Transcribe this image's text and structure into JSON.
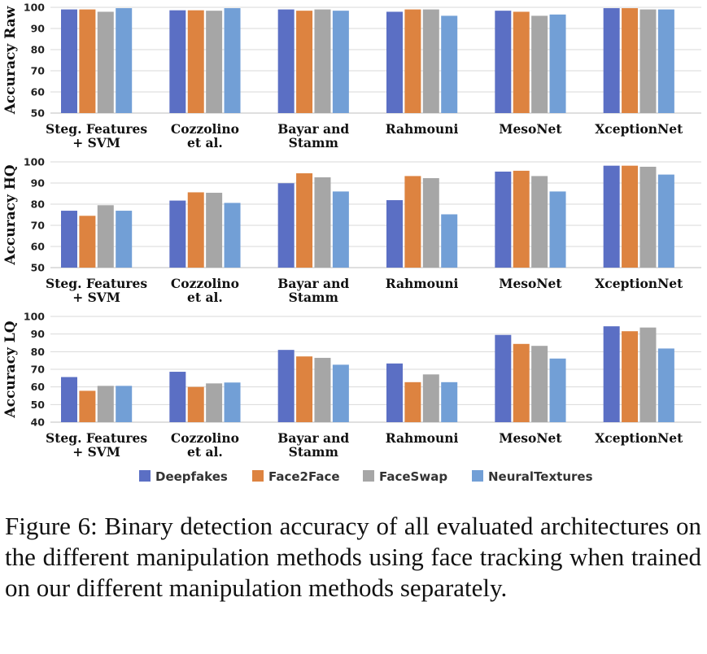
{
  "colors": {
    "Deepfakes": "#5b6fc4",
    "Face2Face": "#dd8340",
    "FaceSwap": "#a6a6a6",
    "NeuralTextures": "#729fd6",
    "grid": "#d9d9d9",
    "axis": "#bfbfbf"
  },
  "legend": [
    "Deepfakes",
    "Face2Face",
    "FaceSwap",
    "NeuralTextures"
  ],
  "chart_data": [
    {
      "type": "bar",
      "ylabel": "Accuracy Raw",
      "ylim": [
        50,
        100
      ],
      "yticks": [
        50,
        60,
        70,
        80,
        90,
        100
      ],
      "categories": [
        [
          "Steg. Features",
          "+ SVM"
        ],
        [
          "Cozzolino",
          "et al."
        ],
        [
          "Bayar and",
          "Stamm"
        ],
        [
          "Rahmouni"
        ],
        [
          "MesoNet"
        ],
        [
          "XceptionNet"
        ]
      ],
      "series": [
        {
          "name": "Deepfakes",
          "values": [
            99.0,
            98.6,
            99.0,
            97.9,
            98.4,
            99.6
          ]
        },
        {
          "name": "Face2Face",
          "values": [
            99.0,
            98.6,
            98.4,
            99.0,
            97.9,
            99.6
          ]
        },
        {
          "name": "FaceSwap",
          "values": [
            97.9,
            98.4,
            99.0,
            99.0,
            96.0,
            99.0
          ]
        },
        {
          "name": "NeuralTextures",
          "values": [
            99.6,
            99.6,
            98.4,
            96.0,
            96.6,
            99.0
          ]
        }
      ]
    },
    {
      "type": "bar",
      "ylabel": "Accuracy HQ",
      "ylim": [
        50,
        100
      ],
      "yticks": [
        50,
        60,
        70,
        80,
        90,
        100
      ],
      "categories": [
        [
          "Steg. Features",
          "+ SVM"
        ],
        [
          "Cozzolino",
          "et al."
        ],
        [
          "Bayar and",
          "Stamm"
        ],
        [
          "Rahmouni"
        ],
        [
          "MesoNet"
        ],
        [
          "XceptionNet"
        ]
      ],
      "series": [
        {
          "name": "Deepfakes",
          "values": [
            76.9,
            81.7,
            89.9,
            81.9,
            95.4,
            98.2
          ]
        },
        {
          "name": "Face2Face",
          "values": [
            74.5,
            85.6,
            94.6,
            93.3,
            95.8,
            98.2
          ]
        },
        {
          "name": "FaceSwap",
          "values": [
            79.5,
            85.4,
            92.7,
            92.3,
            93.3,
            97.7
          ]
        },
        {
          "name": "NeuralTextures",
          "values": [
            76.9,
            80.6,
            86.0,
            75.2,
            86.0,
            94.0
          ]
        }
      ]
    },
    {
      "type": "bar",
      "ylabel": "Accuracy LQ",
      "ylim": [
        40,
        100
      ],
      "yticks": [
        40,
        50,
        60,
        70,
        80,
        90,
        100
      ],
      "categories": [
        [
          "Steg. Features",
          "+ SVM"
        ],
        [
          "Cozzolino",
          "et al."
        ],
        [
          "Bayar and",
          "Stamm"
        ],
        [
          "Rahmouni"
        ],
        [
          "MesoNet"
        ],
        [
          "XceptionNet"
        ]
      ],
      "series": [
        {
          "name": "Deepfakes",
          "values": [
            65.6,
            68.6,
            81.0,
            73.3,
            89.5,
            94.4
          ]
        },
        {
          "name": "Face2Face",
          "values": [
            57.8,
            60.0,
            77.3,
            62.7,
            84.4,
            91.6
          ]
        },
        {
          "name": "FaceSwap",
          "values": [
            60.6,
            62.0,
            76.5,
            67.1,
            83.3,
            93.7
          ]
        },
        {
          "name": "NeuralTextures",
          "values": [
            60.6,
            62.5,
            72.6,
            62.7,
            76.1,
            81.8
          ]
        }
      ]
    }
  ],
  "caption": "Figure 6: Binary detection accuracy of all evaluated architectures on the different manipulation methods using face tracking when trained on our different manipulation methods separately."
}
